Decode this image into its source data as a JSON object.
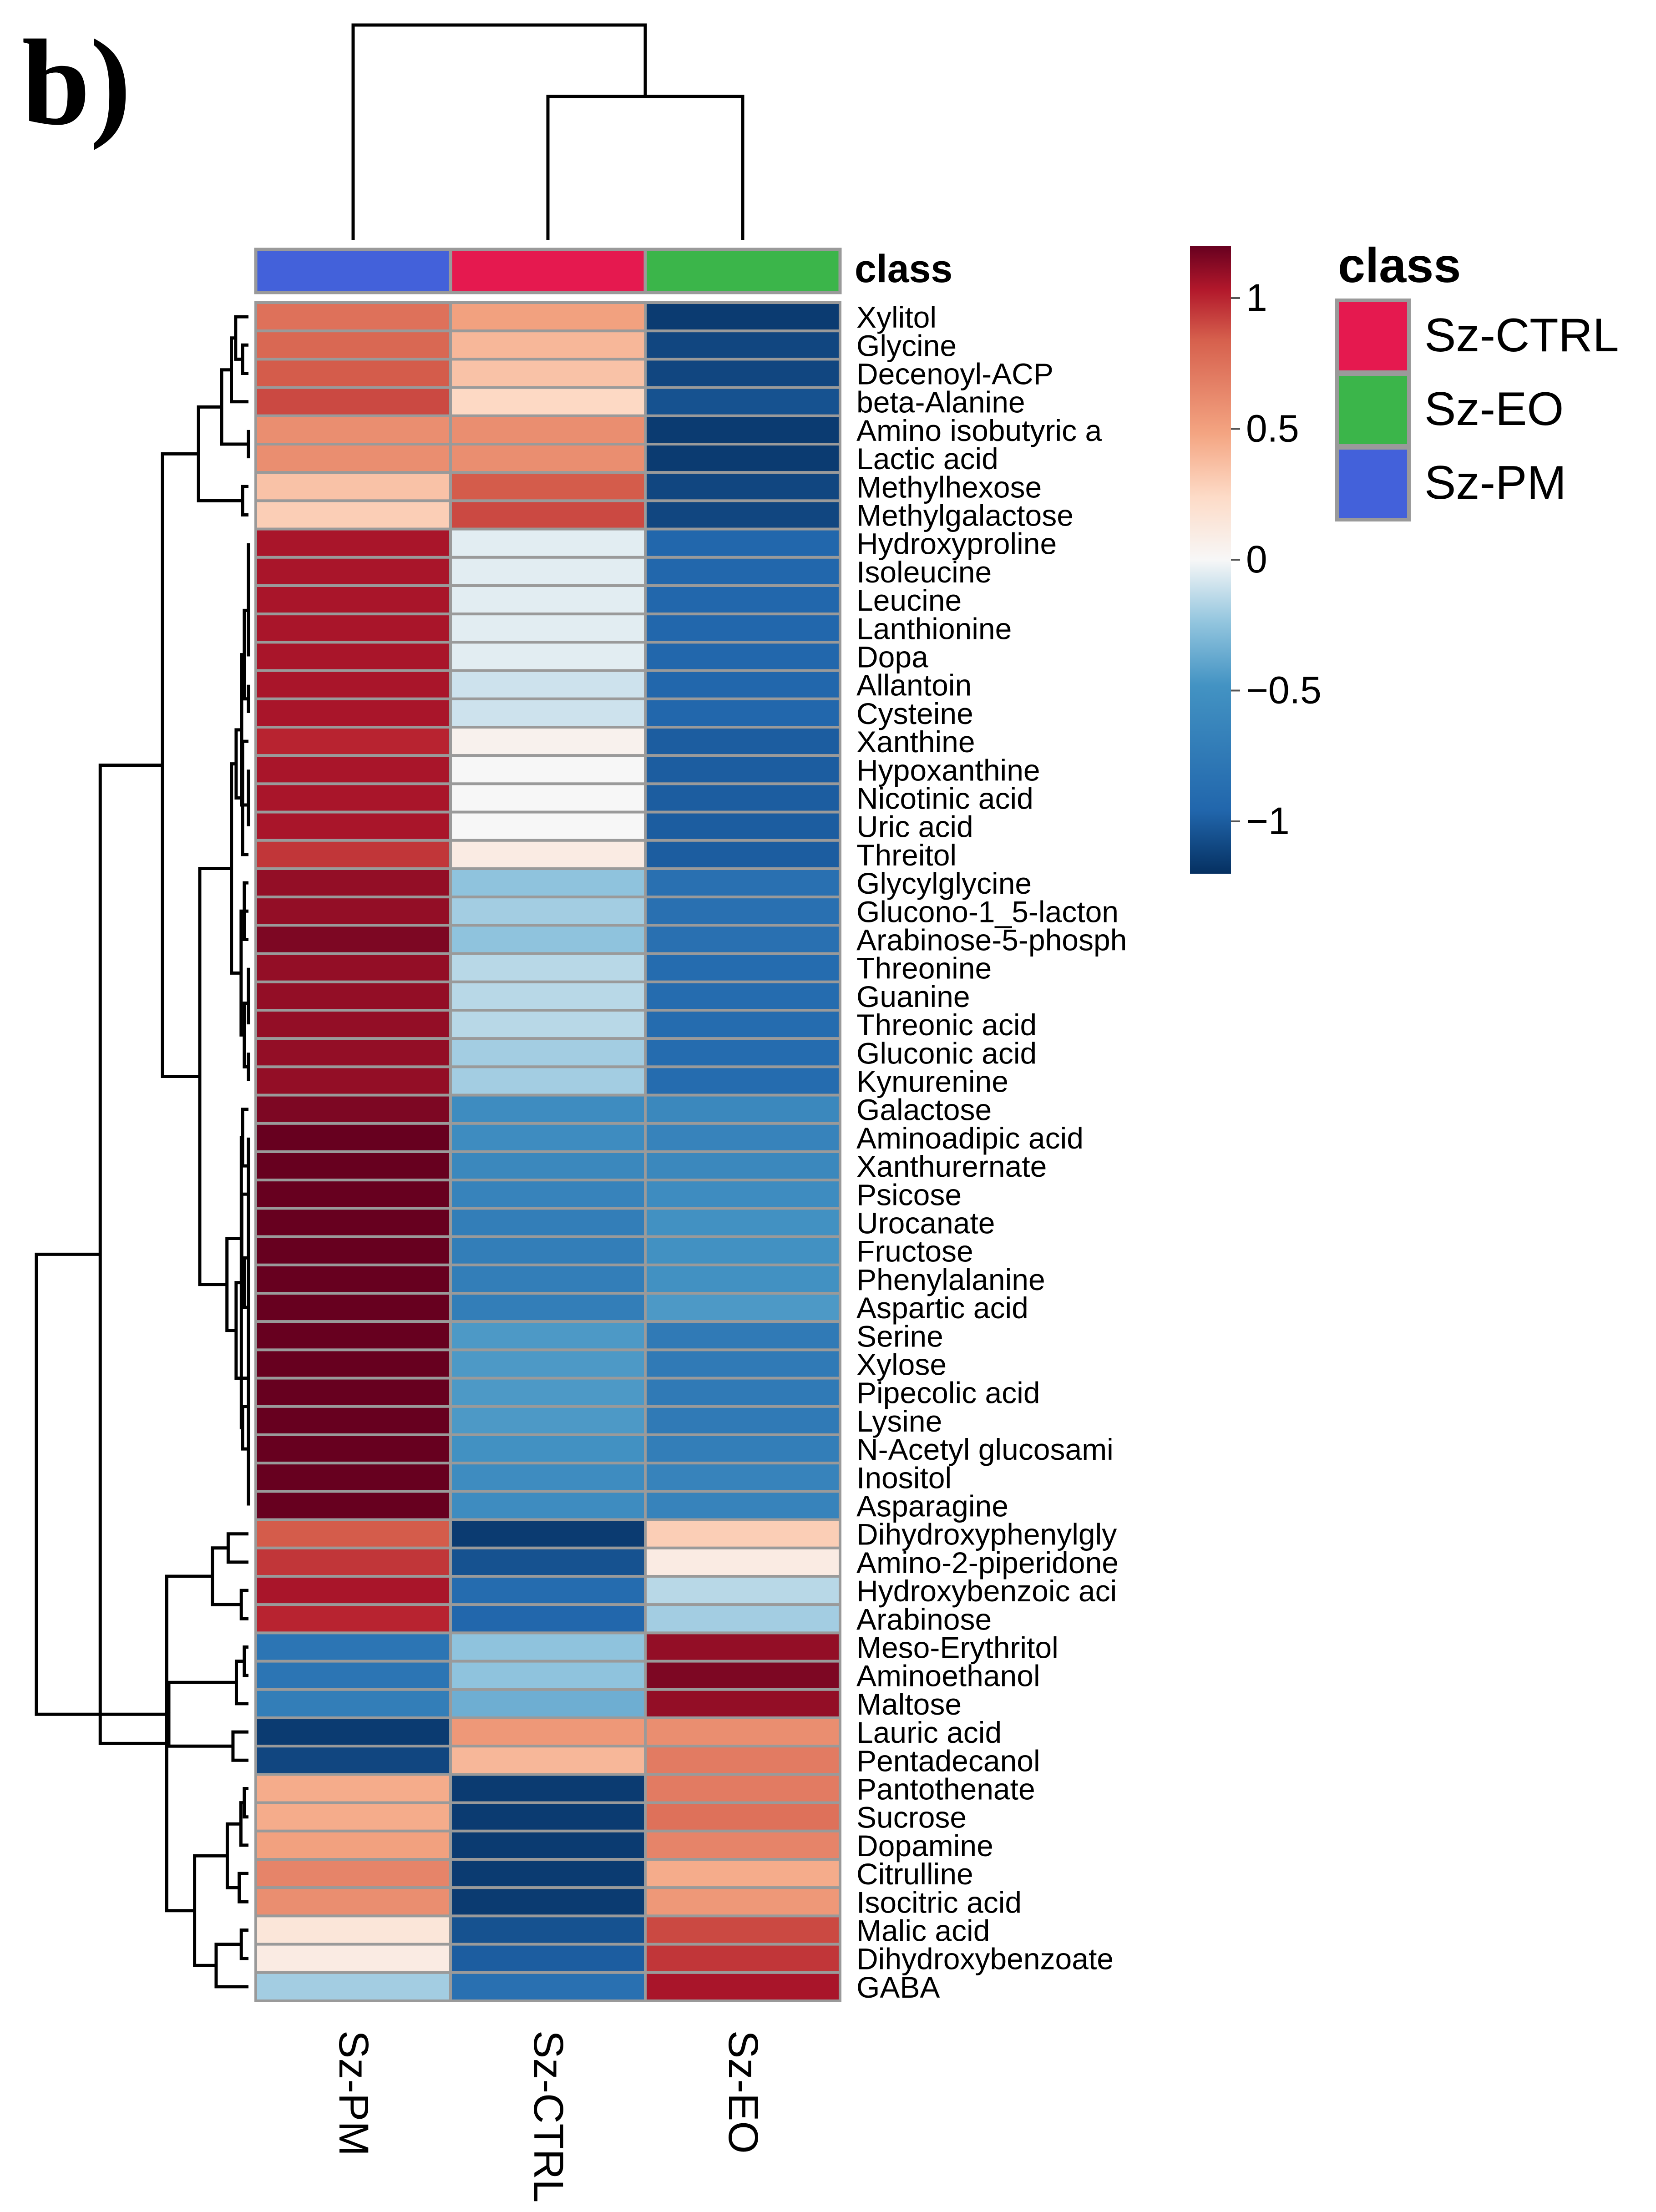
{
  "chart_data": {
    "type": "heatmap",
    "panel_label": "b)",
    "columns": [
      "Sz-PM",
      "Sz-CTRL",
      "Sz-EO"
    ],
    "annotation": {
      "title": "class",
      "classes": [
        "Sz-PM",
        "Sz-CTRL",
        "Sz-EO"
      ],
      "colors": {
        "Sz-PM": "#4361da",
        "Sz-CTRL": "#e5194f",
        "Sz-EO": "#3bb54a"
      }
    },
    "legend": {
      "title": "class",
      "entries": [
        {
          "label": "Sz-CTRL",
          "color": "#e5194f"
        },
        {
          "label": "Sz-EO",
          "color": "#3bb54a"
        },
        {
          "label": "Sz-PM",
          "color": "#4361da"
        }
      ]
    },
    "colorbar": {
      "range": [
        -1.2,
        1.2
      ],
      "ticks": [
        1,
        0.5,
        0,
        -0.5,
        -1
      ],
      "tick_labels": [
        "1",
        "0.5",
        "0",
        "−0.5",
        "−1"
      ]
    },
    "rows": [
      {
        "name": "Xylitol",
        "values": [
          0.75,
          0.5,
          -1.15
        ]
      },
      {
        "name": "Glycine",
        "values": [
          0.8,
          0.4,
          -1.1
        ]
      },
      {
        "name": "Decenoyl-ACP",
        "values": [
          0.85,
          0.35,
          -1.1
        ]
      },
      {
        "name": "beta-Alanine",
        "values": [
          0.9,
          0.25,
          -1.05
        ]
      },
      {
        "name": "Amino isobutyric a",
        "values": [
          0.6,
          0.6,
          -1.15
        ]
      },
      {
        "name": "Lactic acid",
        "values": [
          0.6,
          0.6,
          -1.15
        ]
      },
      {
        "name": "Methylhexose",
        "values": [
          0.35,
          0.85,
          -1.1
        ]
      },
      {
        "name": "Methylgalactose",
        "values": [
          0.3,
          0.9,
          -1.1
        ]
      },
      {
        "name": "Hydroxyproline",
        "values": [
          1.05,
          -0.05,
          -0.95
        ]
      },
      {
        "name": "Isoleucine",
        "values": [
          1.05,
          -0.05,
          -0.95
        ]
      },
      {
        "name": "Leucine",
        "values": [
          1.05,
          -0.05,
          -0.95
        ]
      },
      {
        "name": "Lanthionine",
        "values": [
          1.05,
          -0.05,
          -0.95
        ]
      },
      {
        "name": "Dopa",
        "values": [
          1.05,
          -0.05,
          -0.95
        ]
      },
      {
        "name": "Allantoin",
        "values": [
          1.05,
          -0.1,
          -0.95
        ]
      },
      {
        "name": "Cysteine",
        "values": [
          1.05,
          -0.1,
          -0.95
        ]
      },
      {
        "name": "Xanthine",
        "values": [
          1.0,
          0.05,
          -1.0
        ]
      },
      {
        "name": "Hypoxanthine",
        "values": [
          1.05,
          0.0,
          -1.0
        ]
      },
      {
        "name": "Nicotinic acid",
        "values": [
          1.05,
          0.0,
          -1.0
        ]
      },
      {
        "name": "Uric acid",
        "values": [
          1.05,
          0.0,
          -1.0
        ]
      },
      {
        "name": "Threitol",
        "values": [
          0.95,
          0.1,
          -1.0
        ]
      },
      {
        "name": "Glycylglycine",
        "values": [
          1.1,
          -0.25,
          -0.85
        ]
      },
      {
        "name": "Glucono-1_5-lacton",
        "values": [
          1.1,
          -0.2,
          -0.85
        ]
      },
      {
        "name": "Arabinose-5-phosph",
        "values": [
          1.15,
          -0.25,
          -0.85
        ]
      },
      {
        "name": "Threonine",
        "values": [
          1.1,
          -0.15,
          -0.9
        ]
      },
      {
        "name": "Guanine",
        "values": [
          1.1,
          -0.15,
          -0.9
        ]
      },
      {
        "name": "Threonic acid",
        "values": [
          1.1,
          -0.15,
          -0.9
        ]
      },
      {
        "name": "Gluconic acid",
        "values": [
          1.1,
          -0.2,
          -0.9
        ]
      },
      {
        "name": "Kynurenine",
        "values": [
          1.1,
          -0.2,
          -0.9
        ]
      },
      {
        "name": "Galactose",
        "values": [
          1.15,
          -0.55,
          -0.6
        ]
      },
      {
        "name": "Aminoadipic acid",
        "values": [
          1.2,
          -0.55,
          -0.65
        ]
      },
      {
        "name": "Xanthurernate",
        "values": [
          1.2,
          -0.6,
          -0.6
        ]
      },
      {
        "name": "Psicose",
        "values": [
          1.2,
          -0.65,
          -0.55
        ]
      },
      {
        "name": "Urocanate",
        "values": [
          1.2,
          -0.7,
          -0.5
        ]
      },
      {
        "name": "Fructose",
        "values": [
          1.2,
          -0.7,
          -0.5
        ]
      },
      {
        "name": "Phenylalanine",
        "values": [
          1.2,
          -0.7,
          -0.5
        ]
      },
      {
        "name": "Aspartic acid",
        "values": [
          1.2,
          -0.7,
          -0.45
        ]
      },
      {
        "name": "Serine",
        "values": [
          1.2,
          -0.45,
          -0.75
        ]
      },
      {
        "name": "Xylose",
        "values": [
          1.2,
          -0.45,
          -0.75
        ]
      },
      {
        "name": "Pipecolic acid",
        "values": [
          1.2,
          -0.45,
          -0.75
        ]
      },
      {
        "name": "Lysine",
        "values": [
          1.2,
          -0.45,
          -0.75
        ]
      },
      {
        "name": "N-Acetyl glucosami",
        "values": [
          1.2,
          -0.5,
          -0.7
        ]
      },
      {
        "name": "Inositol",
        "values": [
          1.2,
          -0.55,
          -0.65
        ]
      },
      {
        "name": "Asparagine",
        "values": [
          1.2,
          -0.55,
          -0.65
        ]
      },
      {
        "name": "Dihydroxyphenylgly",
        "values": [
          0.85,
          -1.15,
          0.3
        ]
      },
      {
        "name": "Amino-2-piperidone",
        "values": [
          0.95,
          -1.05,
          0.1
        ]
      },
      {
        "name": "Hydroxybenzoic aci",
        "values": [
          1.05,
          -0.9,
          -0.15
        ]
      },
      {
        "name": "Arabinose",
        "values": [
          1.0,
          -0.95,
          -0.2
        ]
      },
      {
        "name": "Meso-Erythritol",
        "values": [
          -0.8,
          -0.25,
          1.1
        ]
      },
      {
        "name": "Aminoethanol",
        "values": [
          -0.8,
          -0.25,
          1.15
        ]
      },
      {
        "name": "Maltose",
        "values": [
          -0.7,
          -0.35,
          1.1
        ]
      },
      {
        "name": "Lauric acid",
        "values": [
          -1.15,
          0.55,
          0.6
        ]
      },
      {
        "name": "Pentadecanol",
        "values": [
          -1.1,
          0.4,
          0.7
        ]
      },
      {
        "name": "Pantothenate",
        "values": [
          0.45,
          -1.15,
          0.7
        ]
      },
      {
        "name": "Sucrose",
        "values": [
          0.45,
          -1.15,
          0.75
        ]
      },
      {
        "name": "Dopamine",
        "values": [
          0.5,
          -1.15,
          0.65
        ]
      },
      {
        "name": "Citrulline",
        "values": [
          0.65,
          -1.15,
          0.45
        ]
      },
      {
        "name": "Isocitric acid",
        "values": [
          0.6,
          -1.15,
          0.55
        ]
      },
      {
        "name": "Malic acid",
        "values": [
          0.15,
          -1.05,
          0.9
        ]
      },
      {
        "name": "Dihydroxybenzoate",
        "values": [
          0.1,
          -1.0,
          0.95
        ]
      },
      {
        "name": "GABA",
        "values": [
          -0.2,
          -0.85,
          1.05
        ]
      }
    ]
  }
}
